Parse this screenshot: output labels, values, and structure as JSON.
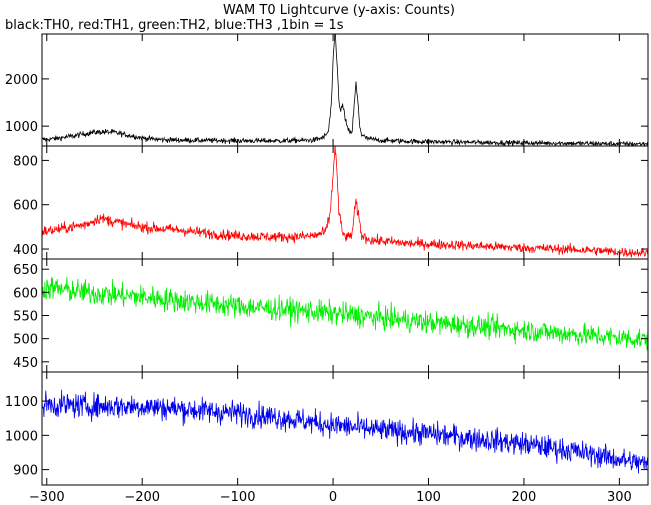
{
  "chart_data": {
    "type": "line",
    "title": "WAM T0 Lightcurve (y-axis: Counts)",
    "subtitle": "black:TH0, red:TH1, green:TH2, blue:TH3 ,1bin = 1s",
    "x_range": [
      -305,
      330
    ],
    "x_ticks": [
      -300,
      -200,
      -100,
      0,
      100,
      200,
      300
    ],
    "panels": [
      {
        "name": "TH0",
        "color": "#000000",
        "ylim": [
          580,
          2950
        ],
        "y_ticks": [
          1000,
          2000
        ],
        "points": [
          [
            -300,
            720
          ],
          [
            -290,
            740
          ],
          [
            -280,
            770
          ],
          [
            -270,
            800
          ],
          [
            -260,
            840
          ],
          [
            -250,
            870
          ],
          [
            -240,
            880
          ],
          [
            -230,
            870
          ],
          [
            -220,
            830
          ],
          [
            -210,
            790
          ],
          [
            -200,
            750
          ],
          [
            -190,
            730
          ],
          [
            -180,
            715
          ],
          [
            -160,
            705
          ],
          [
            -140,
            700
          ],
          [
            -120,
            695
          ],
          [
            -100,
            692
          ],
          [
            -80,
            690
          ],
          [
            -60,
            690
          ],
          [
            -40,
            695
          ],
          [
            -20,
            705
          ],
          [
            -10,
            760
          ],
          [
            -5,
            880
          ],
          [
            -2,
            1400
          ],
          [
            0,
            2300
          ],
          [
            2,
            3000
          ],
          [
            4,
            2400
          ],
          [
            6,
            1600
          ],
          [
            8,
            1300
          ],
          [
            10,
            1450
          ],
          [
            12,
            1250
          ],
          [
            15,
            950
          ],
          [
            18,
            850
          ],
          [
            20,
            900
          ],
          [
            22,
            1400
          ],
          [
            24,
            1900
          ],
          [
            26,
            1500
          ],
          [
            28,
            1000
          ],
          [
            30,
            820
          ],
          [
            35,
            740
          ],
          [
            50,
            700
          ],
          [
            80,
            680
          ],
          [
            120,
            665
          ],
          [
            160,
            655
          ],
          [
            200,
            645
          ],
          [
            240,
            640
          ],
          [
            280,
            630
          ],
          [
            310,
            625
          ],
          [
            330,
            625
          ]
        ],
        "noise": 55
      },
      {
        "name": "TH1",
        "color": "#ff0000",
        "ylim": [
          355,
          865
        ],
        "y_ticks": [
          400,
          600,
          800
        ],
        "points": [
          [
            -300,
            480
          ],
          [
            -280,
            495
          ],
          [
            -260,
            510
          ],
          [
            -245,
            540
          ],
          [
            -230,
            525
          ],
          [
            -210,
            505
          ],
          [
            -190,
            495
          ],
          [
            -160,
            485
          ],
          [
            -130,
            470
          ],
          [
            -100,
            460
          ],
          [
            -70,
            455
          ],
          [
            -40,
            455
          ],
          [
            -20,
            460
          ],
          [
            -8,
            475
          ],
          [
            -3,
            560
          ],
          [
            0,
            740
          ],
          [
            2,
            860
          ],
          [
            4,
            760
          ],
          [
            6,
            570
          ],
          [
            10,
            470
          ],
          [
            15,
            450
          ],
          [
            20,
            470
          ],
          [
            22,
            550
          ],
          [
            24,
            610
          ],
          [
            27,
            540
          ],
          [
            30,
            460
          ],
          [
            40,
            440
          ],
          [
            80,
            425
          ],
          [
            120,
            420
          ],
          [
            160,
            412
          ],
          [
            200,
            405
          ],
          [
            240,
            400
          ],
          [
            280,
            392
          ],
          [
            310,
            385
          ],
          [
            330,
            382
          ]
        ],
        "noise": 24
      },
      {
        "name": "TH2",
        "color": "#00ee00",
        "ylim": [
          428,
          672
        ],
        "y_ticks": [
          450,
          500,
          550,
          600,
          650
        ],
        "points": [
          [
            -300,
            610
          ],
          [
            -250,
            598
          ],
          [
            -200,
            590
          ],
          [
            -150,
            580
          ],
          [
            -100,
            570
          ],
          [
            -50,
            563
          ],
          [
            0,
            555
          ],
          [
            50,
            545
          ],
          [
            100,
            535
          ],
          [
            150,
            527
          ],
          [
            200,
            518
          ],
          [
            250,
            510
          ],
          [
            300,
            502
          ],
          [
            330,
            498
          ]
        ],
        "noise": 26
      },
      {
        "name": "TH3",
        "color": "#0000ee",
        "ylim": [
          855,
          1185
        ],
        "y_ticks": [
          900,
          1000,
          1100
        ],
        "points": [
          [
            -300,
            1090
          ],
          [
            -250,
            1085
          ],
          [
            -200,
            1085
          ],
          [
            -150,
            1075
          ],
          [
            -100,
            1065
          ],
          [
            -50,
            1050
          ],
          [
            0,
            1030
          ],
          [
            50,
            1015
          ],
          [
            100,
            1005
          ],
          [
            150,
            990
          ],
          [
            200,
            975
          ],
          [
            250,
            955
          ],
          [
            300,
            930
          ],
          [
            330,
            915
          ]
        ],
        "noise": 36
      }
    ]
  }
}
